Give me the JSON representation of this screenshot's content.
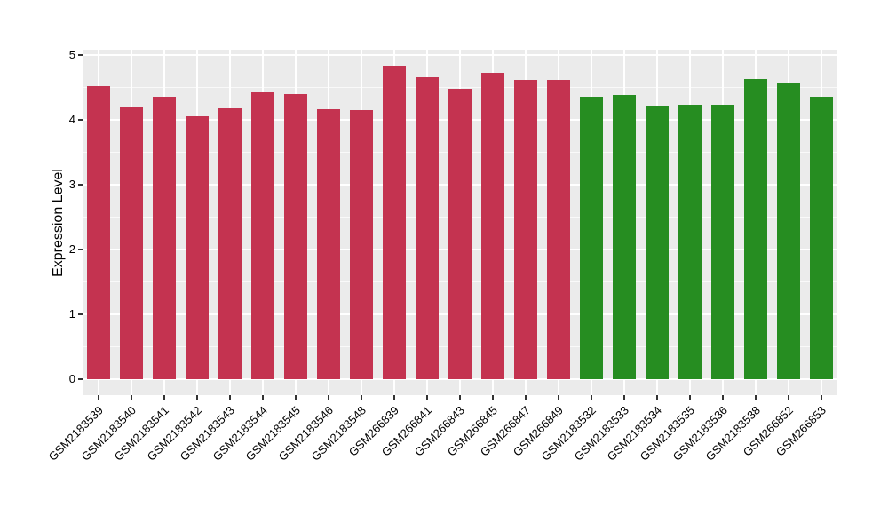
{
  "chart_data": {
    "type": "bar",
    "title": "",
    "xlabel": "",
    "ylabel": "Expression Level",
    "ylim": [
      0,
      5
    ],
    "yticks": [
      0,
      1,
      2,
      3,
      4,
      5
    ],
    "grid": "white major and minor horizontal lines, white vertical lines at category centers",
    "legend_position": "none",
    "panel_background": "#EBEBEB",
    "gridline_color": "#FFFFFF",
    "axis_tick_color": "#333333",
    "text_color": "#000000",
    "categories": [
      "GSM2183539",
      "GSM2183540",
      "GSM2183541",
      "GSM2183542",
      "GSM2183543",
      "GSM2183544",
      "GSM2183545",
      "GSM2183546",
      "GSM2183548",
      "GSM266839",
      "GSM266841",
      "GSM266843",
      "GSM266845",
      "GSM266847",
      "GSM266849",
      "GSM2183532",
      "GSM2183533",
      "GSM2183534",
      "GSM2183535",
      "GSM2183536",
      "GSM2183538",
      "GSM266852",
      "GSM266853"
    ],
    "values": [
      4.52,
      4.2,
      4.35,
      4.06,
      4.18,
      4.43,
      4.4,
      4.17,
      4.15,
      4.83,
      4.66,
      4.48,
      4.72,
      4.62,
      4.62,
      4.36,
      4.39,
      4.22,
      4.23,
      4.23,
      4.63,
      4.58,
      4.36
    ],
    "bar_groups": [
      "red",
      "red",
      "red",
      "red",
      "red",
      "red",
      "red",
      "red",
      "red",
      "red",
      "red",
      "red",
      "red",
      "red",
      "red",
      "green",
      "green",
      "green",
      "green",
      "green",
      "green",
      "green",
      "green"
    ],
    "palette": {
      "red": "#C43350",
      "green": "#268D21"
    }
  }
}
